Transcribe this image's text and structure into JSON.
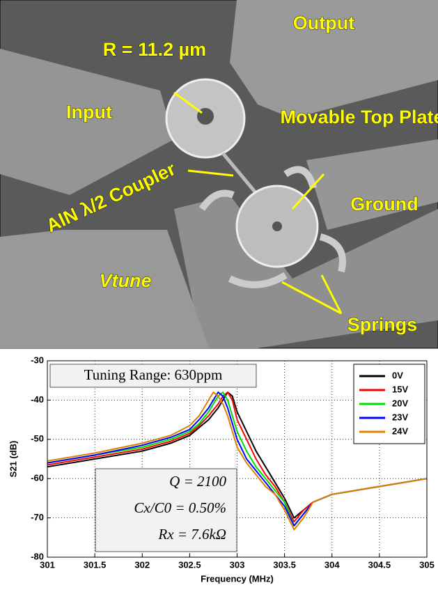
{
  "figure": {
    "labels": [
      "Output",
      "R = 11.2 µm",
      "Input",
      "Movable Top Plate",
      "AlN λ/2 Coupler",
      "Ground",
      "Vtune",
      "Springs"
    ]
  },
  "chart_data": {
    "type": "line",
    "x_label": "Frequency (MHz)",
    "y_label": "S21 (dB)",
    "annotations": [
      "Tuning Range: 630ppm",
      "Q = 2100",
      "Cx/C0 = 0.50%",
      "Rx = 7.6kΩ"
    ],
    "x": [
      301,
      301.5,
      302,
      302.3,
      302.5,
      302.6,
      302.7,
      302.75,
      302.8,
      302.85,
      302.9,
      302.95,
      303,
      303.1,
      303.2,
      303.3,
      303.4,
      303.5,
      303.6,
      303.7,
      303.8,
      304,
      304.5,
      305
    ],
    "series": [
      {
        "name": "0V",
        "color": "#000000",
        "values": [
          -57,
          -55,
          -53,
          -51,
          -49,
          -47,
          -45,
          -43.5,
          -42,
          -40,
          -38,
          -39,
          -43,
          -48,
          -53,
          -57,
          -61,
          -65,
          -70,
          -68,
          -66,
          -64,
          -62,
          -60
        ]
      },
      {
        "name": "15V",
        "color": "#ff0000",
        "values": [
          -56.5,
          -54.5,
          -52.5,
          -50.5,
          -48.5,
          -46.5,
          -44,
          -42.5,
          -41,
          -39,
          -38,
          -40,
          -45,
          -50,
          -55,
          -59,
          -62,
          -66,
          -71,
          -68,
          -66,
          -64,
          -62,
          -60
        ]
      },
      {
        "name": "20V",
        "color": "#00dd00",
        "values": [
          -56,
          -54,
          -52,
          -50,
          -48,
          -46,
          -43,
          -41,
          -39,
          -38,
          -40,
          -44,
          -48,
          -53,
          -57,
          -60,
          -63,
          -66,
          -72,
          -69,
          -66,
          -64,
          -62,
          -60
        ]
      },
      {
        "name": "23V",
        "color": "#0000ff",
        "values": [
          -56,
          -54,
          -51.5,
          -49.5,
          -47.5,
          -45,
          -42,
          -40,
          -38,
          -39,
          -42,
          -46,
          -50,
          -55,
          -58,
          -61,
          -64,
          -67,
          -72,
          -69,
          -66,
          -64,
          -62,
          -60
        ]
      },
      {
        "name": "24V",
        "color": "#e08000",
        "values": [
          -55.5,
          -53.5,
          -51,
          -49,
          -46.5,
          -44,
          -40,
          -38,
          -39,
          -41,
          -44,
          -48,
          -52,
          -56,
          -59,
          -62,
          -64,
          -68,
          -73,
          -70,
          -66,
          -64,
          -62,
          -60
        ]
      }
    ],
    "xlim": [
      301,
      305
    ],
    "ylim": [
      -80,
      -30
    ],
    "xticks": [
      301,
      301.5,
      302,
      302.5,
      303,
      303.5,
      304,
      304.5,
      305
    ],
    "yticks": [
      -80,
      -70,
      -60,
      -50,
      -40,
      -30
    ],
    "grid": true,
    "legend": "upper right"
  }
}
